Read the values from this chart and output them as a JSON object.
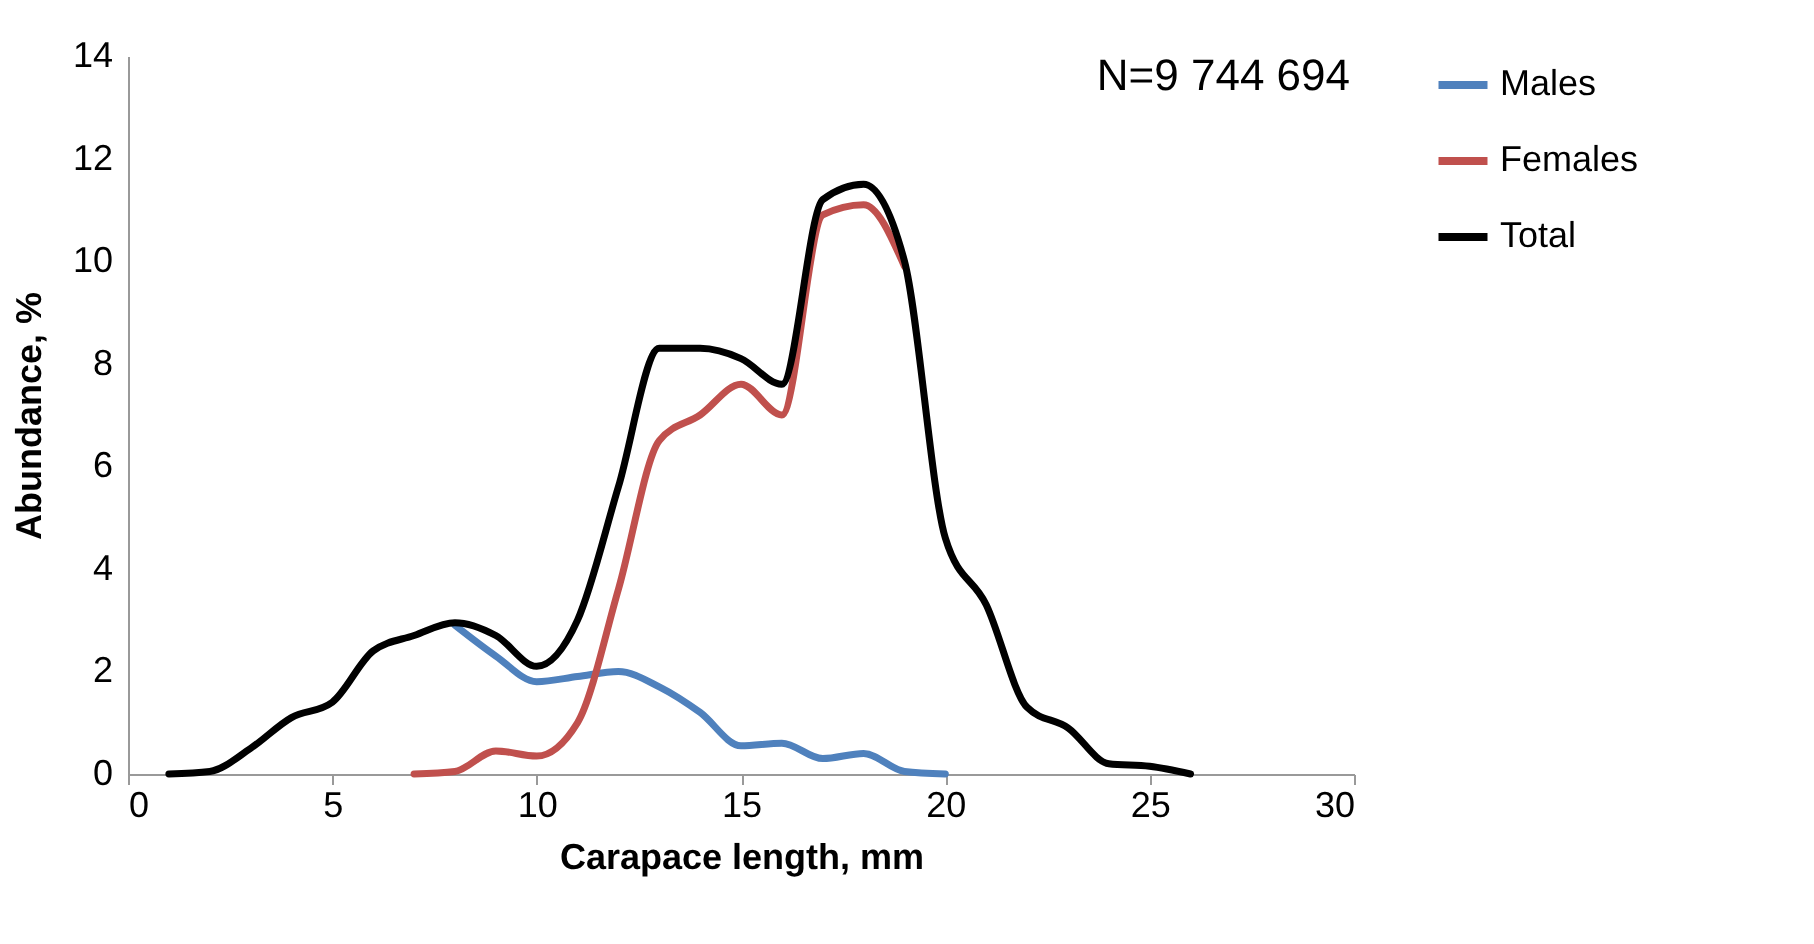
{
  "chart_data": {
    "type": "line",
    "xlabel": "Carapace length, mm",
    "ylabel": "Abundance, %",
    "annotations": [
      "N=9 744 694"
    ],
    "xlim": [
      0,
      30
    ],
    "xticks": [
      0,
      5,
      10,
      15,
      20,
      25,
      30
    ],
    "ylim": [
      0,
      14
    ],
    "yticks": [
      0,
      2,
      4,
      6,
      8,
      10,
      12,
      14
    ],
    "grid": false,
    "legend": "right",
    "marker": "none",
    "line_style": "solid",
    "series": [
      {
        "name": "Males",
        "color": "#4f81bd",
        "x": [
          8,
          9,
          10,
          11,
          12,
          13,
          14,
          15,
          16,
          17,
          18,
          19,
          20
        ],
        "values": [
          2.9,
          2.3,
          1.8,
          1.9,
          2.0,
          1.7,
          1.2,
          0.55,
          0.6,
          0.3,
          0.4,
          0.05,
          0
        ]
      },
      {
        "name": "Females",
        "color": "#c0504d",
        "x": [
          7,
          8,
          9,
          10,
          11,
          12,
          13,
          14,
          15,
          16,
          17,
          18,
          19
        ],
        "values": [
          0,
          0.05,
          0.45,
          0.35,
          1.0,
          3.6,
          6.5,
          7.0,
          7.6,
          7.0,
          10.9,
          11.1,
          9.9
        ]
      },
      {
        "name": "Total",
        "color": "#000000",
        "x": [
          1,
          2,
          3,
          4,
          5,
          6,
          7,
          8,
          9,
          10,
          11,
          12,
          13,
          14,
          15,
          16,
          17,
          18,
          19,
          20,
          21,
          22,
          23,
          24,
          25,
          26
        ],
        "values": [
          0,
          0.05,
          0.5,
          1.1,
          1.4,
          2.4,
          2.7,
          2.95,
          2.7,
          2.1,
          3.0,
          5.6,
          8.3,
          8.3,
          8.1,
          7.6,
          11.2,
          11.5,
          10.0,
          4.6,
          3.3,
          1.3,
          0.9,
          0.2,
          0.15,
          0
        ]
      }
    ]
  }
}
